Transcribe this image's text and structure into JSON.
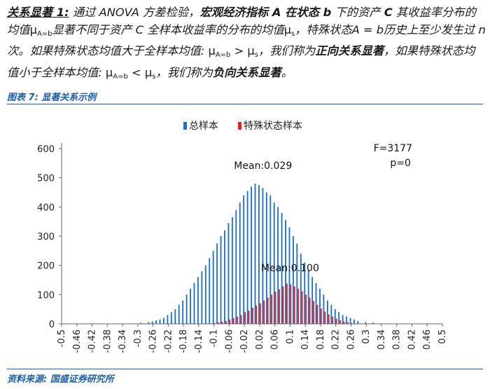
{
  "paragraph": {
    "heading": "关系显著 1:",
    "s1": " 通过 ANOVA 方差检验，",
    "s2": "宏观经济指标 ",
    "var_a": "A",
    "s3": " 在状态 ",
    "var_b": "b",
    "s4": " 下的资产 ",
    "var_c": "C",
    "s5": " 其收益率分布的均值",
    "mu": "μ",
    "sub_ab": "A=b",
    "s6": "显著不同于资产 ",
    "var_c2": "C",
    "s7": " 全样本收益率的分布的均值",
    "sub_s": "s",
    "s8": "，特殊状态A = b历史上至少发生过 ",
    "var_n": "n",
    "s9": " 次。如果特殊状态均值大于全样本均值: ",
    "gt": " > ",
    "s10": "，我们称为",
    "positive": "正向关系显著",
    "s11": "，如果特殊状态均值小于全样本均值: ",
    "lt": " < ",
    "s12": "，我们称为",
    "negative": "负向关系显著",
    "s13": "。"
  },
  "caption": "图表 7:  显著关系示例",
  "source": "资料来源:  国盛证券研究所",
  "colors": {
    "total": "#1f6fc5",
    "special": "#e02424",
    "caption": "#1f5fa6"
  },
  "chart_data": {
    "type": "bar",
    "legend": [
      "总样本",
      "特殊状态样本"
    ],
    "legend_position": "top-center",
    "x_ticks": [
      "-0.5",
      "-0.46",
      "-0.42",
      "-0.38",
      "-0.34",
      "-0.3",
      "-0.26",
      "-0.22",
      "-0.18",
      "-0.14",
      "-0.1",
      "-0.06",
      "-0.02",
      "0.02",
      "0.06",
      "0.1",
      "0.14",
      "0.18",
      "0.22",
      "0.26",
      "0.3",
      "0.34",
      "0.38",
      "0.42",
      "0.46",
      "0.5"
    ],
    "y_ticks": [
      "0",
      "100",
      "200",
      "300",
      "400",
      "500",
      "600"
    ],
    "ylim": [
      0,
      600
    ],
    "xlim": [
      -0.5,
      0.5
    ],
    "bin_width": 0.01,
    "grid": false,
    "series": [
      {
        "name": "总样本",
        "x": [
          -0.29,
          -0.27,
          -0.26,
          -0.25,
          -0.24,
          -0.23,
          -0.22,
          -0.21,
          -0.2,
          -0.19,
          -0.18,
          -0.17,
          -0.16,
          -0.15,
          -0.14,
          -0.13,
          -0.12,
          -0.11,
          -0.1,
          -0.09,
          -0.08,
          -0.07,
          -0.06,
          -0.05,
          -0.04,
          -0.03,
          -0.02,
          -0.01,
          0,
          0.01,
          0.02,
          0.03,
          0.04,
          0.05,
          0.06,
          0.07,
          0.08,
          0.09,
          0.1,
          0.11,
          0.12,
          0.13,
          0.14,
          0.15,
          0.16,
          0.17,
          0.18,
          0.19,
          0.2,
          0.21,
          0.22,
          0.23,
          0.24,
          0.25,
          0.26,
          0.27,
          0.28,
          0.3,
          0.32
        ],
        "values": [
          4,
          6,
          8,
          12,
          15,
          20,
          30,
          40,
          50,
          65,
          80,
          100,
          120,
          140,
          160,
          180,
          200,
          225,
          250,
          275,
          300,
          320,
          345,
          365,
          390,
          415,
          440,
          455,
          470,
          480,
          475,
          465,
          450,
          440,
          415,
          400,
          380,
          355,
          330,
          300,
          275,
          240,
          210,
          185,
          160,
          140,
          120,
          100,
          80,
          65,
          50,
          40,
          30,
          25,
          20,
          15,
          10,
          6,
          4
        ]
      },
      {
        "name": "特殊状态样本",
        "x": [
          -0.1,
          -0.09,
          -0.08,
          -0.07,
          -0.06,
          -0.05,
          -0.04,
          -0.03,
          -0.02,
          -0.01,
          0,
          0.01,
          0.02,
          0.03,
          0.04,
          0.05,
          0.06,
          0.07,
          0.08,
          0.09,
          0.1,
          0.11,
          0.12,
          0.13,
          0.14,
          0.15,
          0.16,
          0.17,
          0.18,
          0.19,
          0.2,
          0.21,
          0.22,
          0.23,
          0.24,
          0.25,
          0.26
        ],
        "values": [
          3,
          5,
          7,
          10,
          15,
          20,
          25,
          30,
          40,
          45,
          55,
          62,
          70,
          80,
          90,
          100,
          110,
          118,
          128,
          138,
          135,
          128,
          120,
          112,
          100,
          90,
          78,
          65,
          52,
          42,
          32,
          25,
          18,
          12,
          8,
          5,
          3
        ]
      }
    ],
    "annotations": [
      {
        "text": "Mean:0.029",
        "x": 0.029,
        "y": 530
      },
      {
        "text": "Mean:0.100",
        "x": 0.1,
        "y": 180
      },
      {
        "text": "F=3177",
        "x": 0.37,
        "y": 590
      },
      {
        "text": "p=0",
        "x": 0.39,
        "y": 540
      }
    ]
  }
}
